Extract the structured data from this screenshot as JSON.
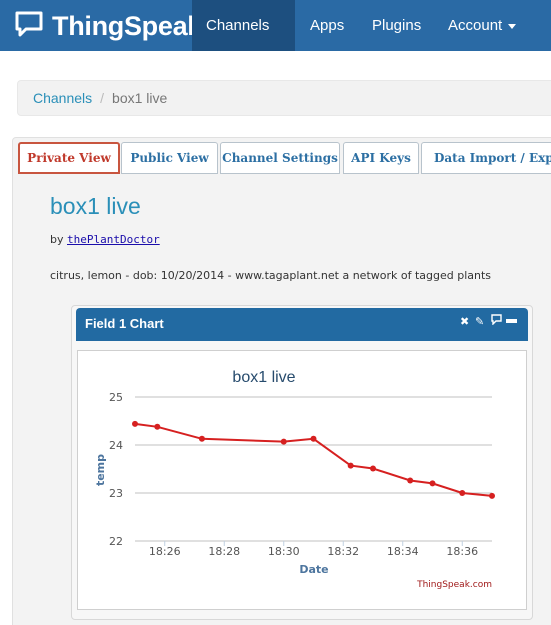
{
  "navbar": {
    "brand": "ThingSpeak",
    "items": [
      {
        "label": "Channels",
        "dropdown": true,
        "active": true
      },
      {
        "label": "Apps",
        "dropdown": false,
        "active": false
      },
      {
        "label": "Plugins",
        "dropdown": false,
        "active": false
      },
      {
        "label": "Account",
        "dropdown": true,
        "active": false
      }
    ]
  },
  "breadcrumb": {
    "link": "Channels",
    "separator": "/",
    "current": "box1 live"
  },
  "tabs": [
    {
      "label": "Private View",
      "active": true
    },
    {
      "label": "Public View",
      "active": false
    },
    {
      "label": "Channel Settings",
      "active": false
    },
    {
      "label": "API Keys",
      "active": false
    },
    {
      "label": "Data Import / Export",
      "active": false
    }
  ],
  "channel": {
    "title": "box1 live",
    "by_prefix": "by",
    "author": "thePlantDoctor",
    "description": "citrus, lemon - dob: 10/20/2014 - www.tagaplant.net a network of tagged plants"
  },
  "widget": {
    "title": "Field 1 Chart",
    "icons": [
      "close-icon",
      "edit-icon",
      "comment-icon",
      "minimize-icon"
    ]
  },
  "colors": {
    "navbar": "#2a6aa5",
    "navbar_active": "#1d4f7f",
    "widget_header": "#226aa2",
    "series": "#d62020",
    "link": "#2a8fb8",
    "active_tab": "#c0392b"
  },
  "chart_data": {
    "type": "line",
    "title": "box1 live",
    "xlabel": "Date",
    "ylabel": "temp",
    "credit": "ThingSpeak.com",
    "x_ticks": [
      "18:26",
      "18:28",
      "18:30",
      "18:32",
      "18:34",
      "18:36"
    ],
    "y_ticks": [
      22,
      23,
      24,
      25
    ],
    "ylim": [
      22,
      25
    ],
    "xlim": [
      "18:25",
      "18:37"
    ],
    "grid": true,
    "series": [
      {
        "x": [
          "18:25:00",
          "18:25:45",
          "18:27:15",
          "18:30:00",
          "18:31:00",
          "18:32:15",
          "18:33:00",
          "18:34:15",
          "18:35:00",
          "18:36:00",
          "18:37:00"
        ],
        "y": [
          24.44,
          24.38,
          24.13,
          24.07,
          24.13,
          23.57,
          23.51,
          23.26,
          23.2,
          23.0,
          22.94
        ]
      }
    ]
  }
}
